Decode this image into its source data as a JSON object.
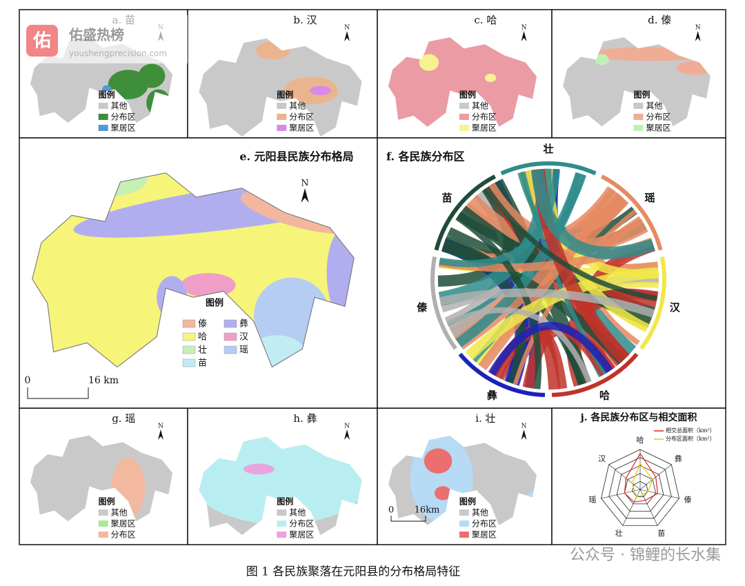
{
  "watermark": {
    "logo": "佑",
    "brand": "佑盛热榜",
    "url": "youshengprecision.com"
  },
  "north": "N",
  "panels": [
    {
      "title": "a. 苗",
      "legend_title": "图例",
      "legend": [
        {
          "label": "其他",
          "color": "#c9c9c9"
        },
        {
          "label": "分布区",
          "color": "#3f8f3a"
        },
        {
          "label": "聚居区",
          "color": "#4f9ad8"
        }
      ]
    },
    {
      "title": "b. 汉",
      "legend_title": "图例",
      "legend": [
        {
          "label": "其他",
          "color": "#c9c9c9"
        },
        {
          "label": "分布区",
          "color": "#eab58e"
        },
        {
          "label": "聚居区",
          "color": "#d98ae6"
        }
      ]
    },
    {
      "title": "c. 哈",
      "legend_title": "图例",
      "legend": [
        {
          "label": "其他",
          "color": "#c9c9c9"
        },
        {
          "label": "分布区",
          "color": "#eb9ba3"
        },
        {
          "label": "聚居区",
          "color": "#f6f290"
        }
      ]
    },
    {
      "title": "d. 傣",
      "legend_title": "图例",
      "legend": [
        {
          "label": "其他",
          "color": "#c9c9c9"
        },
        {
          "label": "分布区",
          "color": "#efad95"
        },
        {
          "label": "聚居区",
          "color": "#bff0b8"
        }
      ]
    },
    {
      "title": "g. 瑶",
      "legend_title": "图例",
      "legend": [
        {
          "label": "其他",
          "color": "#c9c9c9"
        },
        {
          "label": "聚居区",
          "color": "#a8e89a"
        },
        {
          "label": "分布区",
          "color": "#f2b8a0"
        }
      ]
    },
    {
      "title": "h. 彝",
      "legend_title": "图例",
      "legend": [
        {
          "label": "其他",
          "color": "#c9c9c9"
        },
        {
          "label": "分布区",
          "color": "#b8eef2"
        },
        {
          "label": "聚居区",
          "color": "#e8a4e0"
        }
      ]
    },
    {
      "title": "i. 壮",
      "legend_title": "图例",
      "legend": [
        {
          "label": "其他",
          "color": "#c9c9c9"
        },
        {
          "label": "分布区",
          "color": "#b7daf5"
        },
        {
          "label": "聚居区",
          "color": "#ec6f6f"
        }
      ],
      "scale": [
        "0",
        "16km"
      ]
    }
  ],
  "map_e": {
    "title": "e. 元阳县民族分布格局",
    "legend_title": "图例",
    "legend": [
      {
        "label": "傣",
        "color": "#f2b79e"
      },
      {
        "label": "彝",
        "color": "#b1aef0"
      },
      {
        "label": "哈",
        "color": "#f7f47a"
      },
      {
        "label": "汉",
        "color": "#ef9fc7"
      },
      {
        "label": "壮",
        "color": "#c6f0b4"
      },
      {
        "label": "瑶",
        "color": "#b6cdf3"
      },
      {
        "label": "苗",
        "color": "#c1ecf3"
      }
    ],
    "scale": [
      "0",
      "16 km"
    ]
  },
  "chord": {
    "title": "f. 各民族分布区",
    "groups": [
      {
        "label": "壮",
        "color": "#2f8c8c"
      },
      {
        "label": "瑶",
        "color": "#e58a62"
      },
      {
        "label": "汉",
        "color": "#f1e74a"
      },
      {
        "label": "哈",
        "color": "#c0332a"
      },
      {
        "label": "彝",
        "color": "#1a23b8"
      },
      {
        "label": "傣",
        "color": "#b0b0b0"
      },
      {
        "label": "苗",
        "color": "#1f4d3a"
      }
    ]
  },
  "radar": {
    "title": "j. 各民族分布区与相交面积",
    "legend": [
      {
        "label": "相交总面积（km²）",
        "color": "#d22"
      },
      {
        "label": "分布区面积（km²）",
        "color": "#e6c800"
      }
    ],
    "axes": [
      "哈",
      "彝",
      "傣",
      "苗",
      "壮",
      "瑶",
      "汉"
    ]
  },
  "caption": "图 1 各民族聚落在元阳县的分布格局特征",
  "footer_watermark": "公众号 · 锦鲤的长水集"
}
